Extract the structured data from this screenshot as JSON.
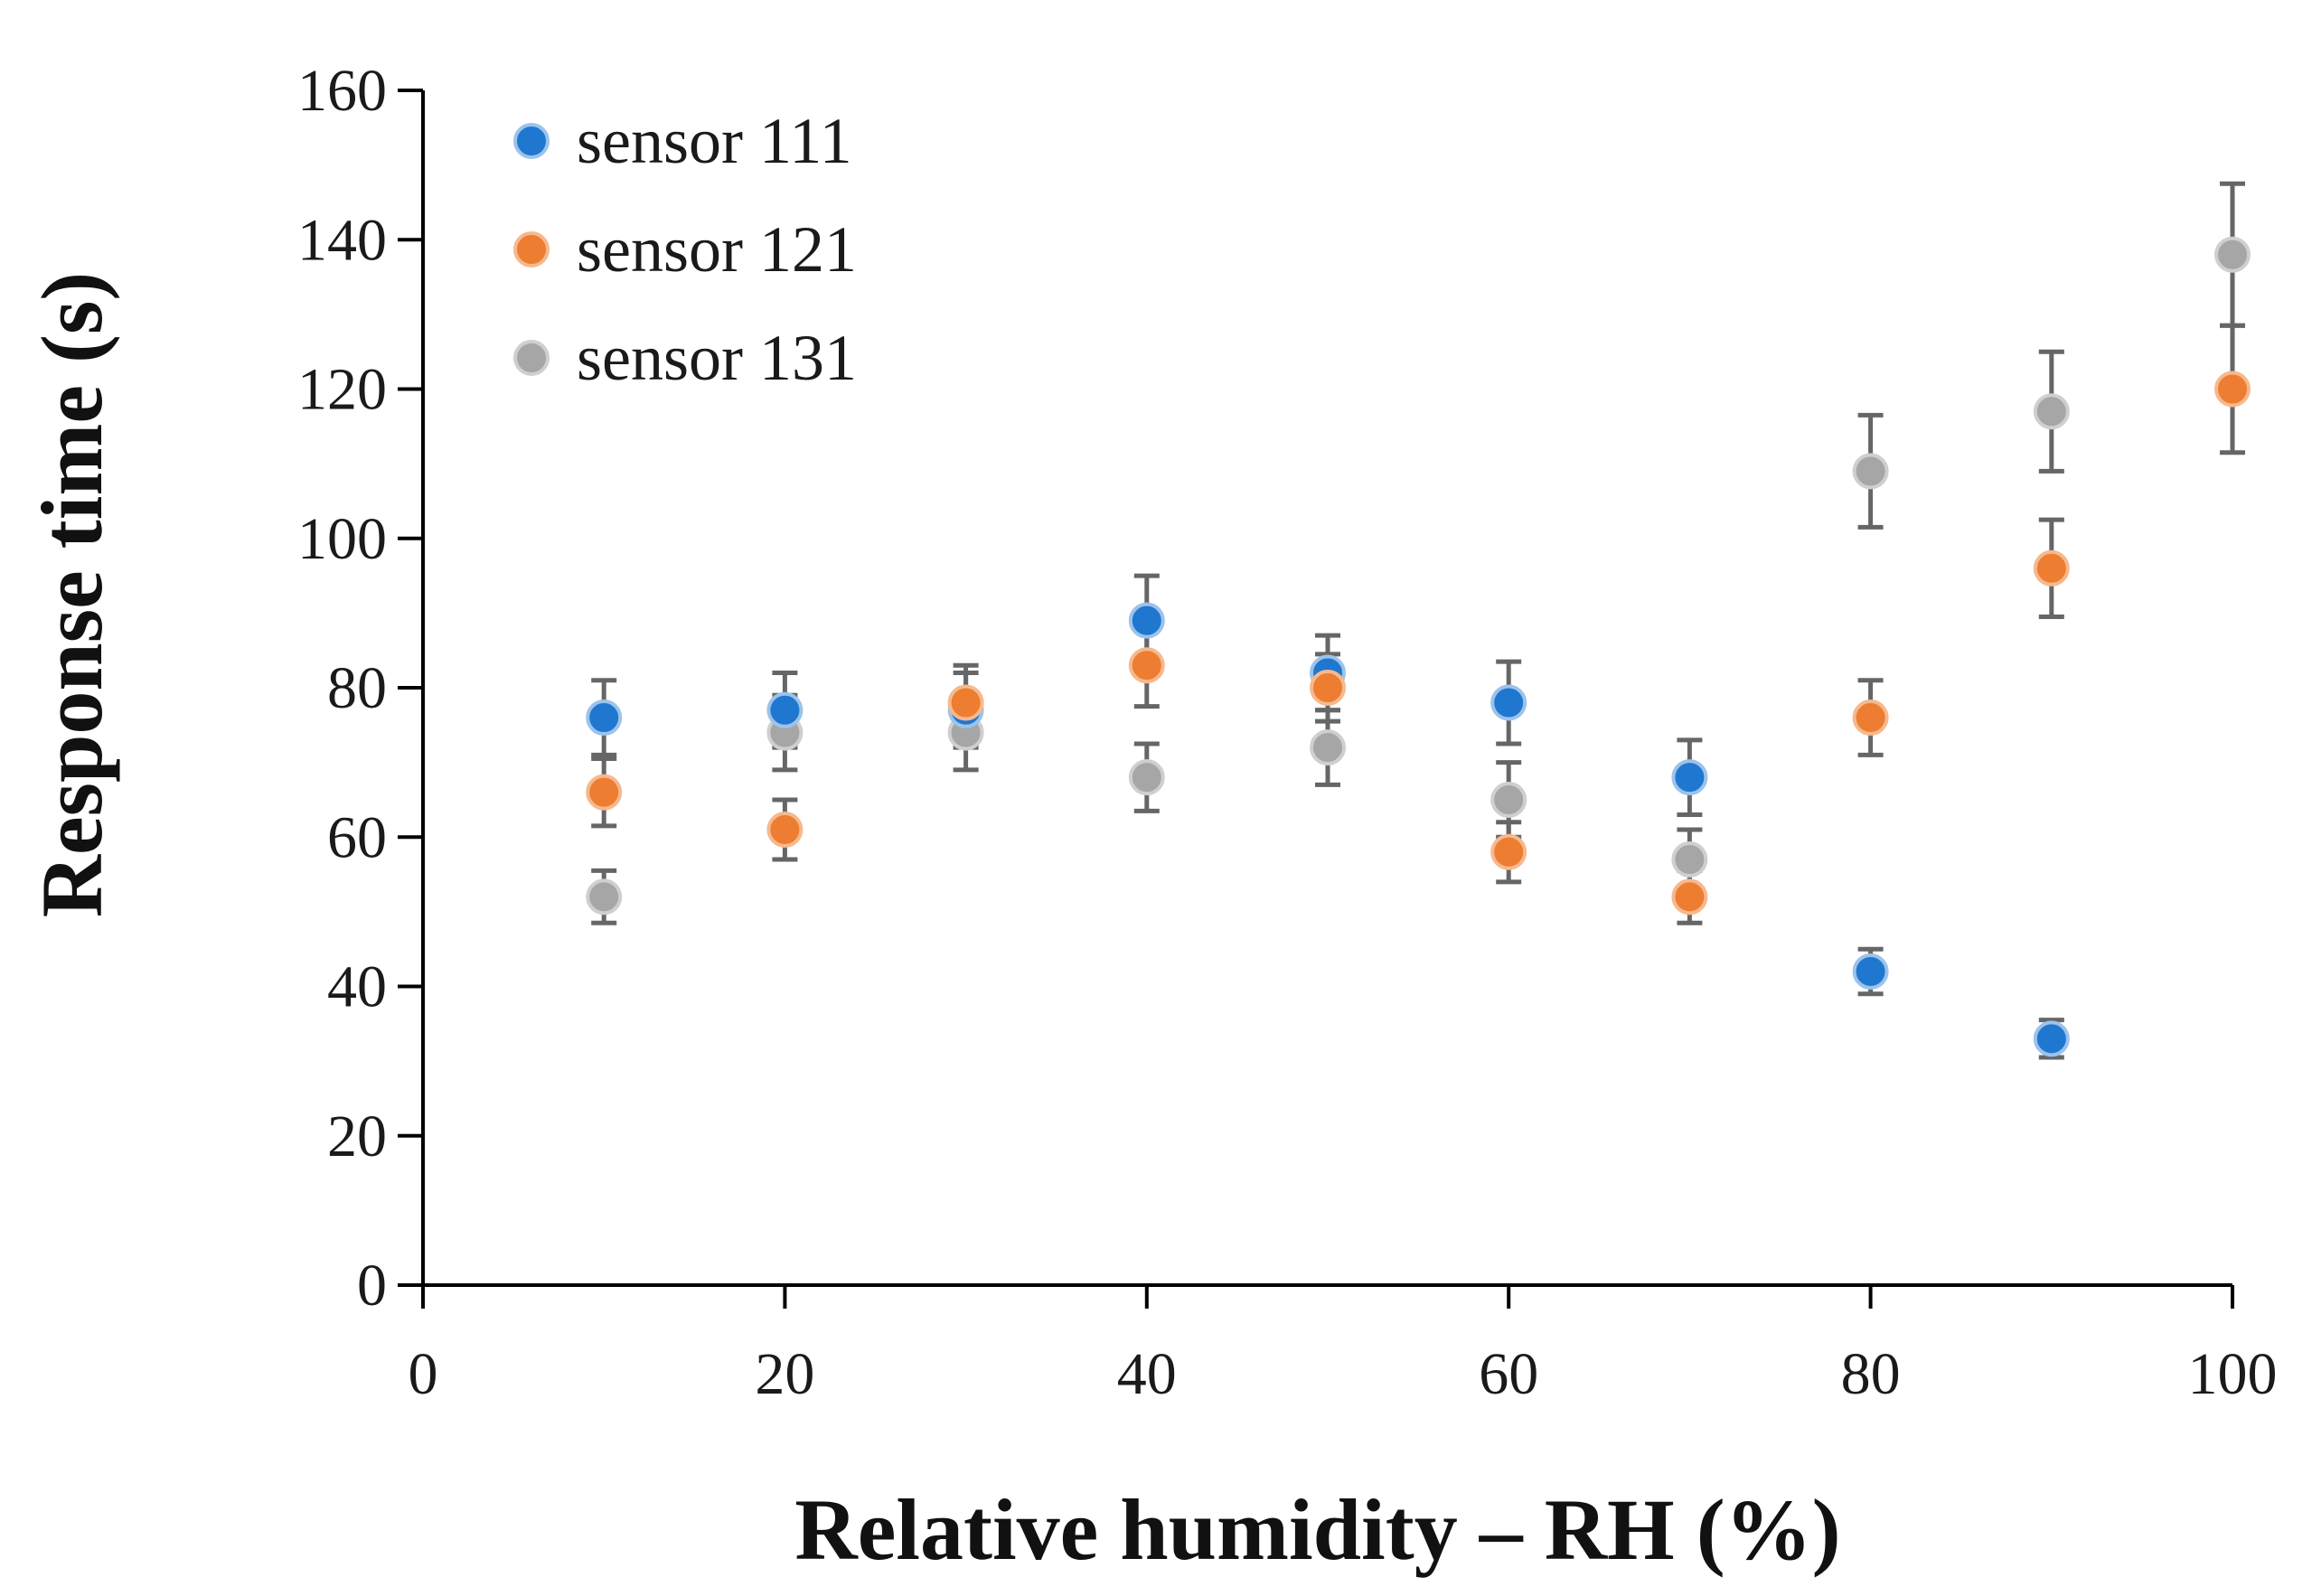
{
  "chart_data": {
    "type": "scatter",
    "title": "",
    "xlabel": "Relative humidity – RH (%)",
    "ylabel": "Response time (s)",
    "xlim": [
      0,
      100
    ],
    "ylim": [
      0,
      160
    ],
    "xticks": [
      0,
      20,
      40,
      60,
      80,
      100
    ],
    "yticks": [
      0,
      20,
      40,
      60,
      80,
      100,
      120,
      140,
      160
    ],
    "grid": false,
    "legend_position": "top-left",
    "series": [
      {
        "name": "sensor 111",
        "color": "#1f77d0",
        "x": [
          10,
          20,
          30,
          40,
          50,
          60,
          70,
          80,
          90
        ],
        "y": [
          76,
          77,
          77,
          89,
          82,
          78,
          68,
          42,
          33
        ],
        "err": [
          5,
          5,
          5,
          6,
          5,
          5.5,
          5,
          3,
          2.5
        ]
      },
      {
        "name": "sensor 121",
        "color": "#ed7d31",
        "x": [
          10,
          20,
          30,
          40,
          50,
          60,
          70,
          80,
          90,
          100
        ],
        "y": [
          66,
          61,
          78,
          83,
          80,
          58,
          52,
          76,
          96,
          120
        ],
        "err": [
          4.5,
          4,
          5,
          5.5,
          4.5,
          4,
          3.5,
          5,
          6.5,
          8.5
        ]
      },
      {
        "name": "sensor 131",
        "color": "#a6a6a6",
        "x": [
          10,
          20,
          30,
          40,
          50,
          60,
          70,
          80,
          90,
          100
        ],
        "y": [
          52,
          74,
          74,
          68,
          72,
          65,
          57,
          109,
          117,
          138
        ],
        "err": [
          3.5,
          5,
          5,
          4.5,
          5,
          5,
          4,
          7.5,
          8,
          9.5
        ]
      }
    ]
  }
}
